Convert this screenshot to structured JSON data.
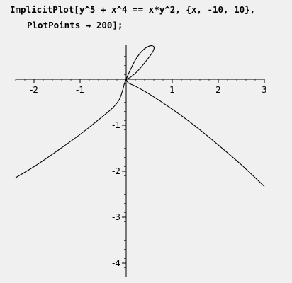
{
  "code": {
    "line1": "ImplicitPlot[y^5 + x^4 == x*y^2, {x, -10, 10},",
    "line2": "PlotPoints → 200];"
  },
  "chart_data": {
    "type": "line",
    "title": "",
    "xlabel": "",
    "ylabel": "",
    "xlim": [
      -2.4,
      3.0
    ],
    "ylim": [
      -4.3,
      0.75
    ],
    "x_ticks": [
      -2,
      -1,
      1,
      2,
      3
    ],
    "y_ticks": [
      -1,
      -2,
      -3,
      -4
    ],
    "grid": false,
    "colors": {
      "curve": "#000000",
      "axes": "#000000"
    },
    "series": [
      {
        "points": [
          [
            -2.4,
            -2.14
          ],
          [
            -2.0,
            -1.9
          ],
          [
            -1.5,
            -1.56
          ],
          [
            -1.0,
            -1.2
          ],
          [
            -0.6,
            -0.88
          ],
          [
            -0.3,
            -0.63
          ],
          [
            -0.15,
            -0.44
          ],
          [
            -0.08,
            -0.25
          ],
          [
            -0.04,
            -0.1
          ],
          [
            0.0,
            0.0
          ]
        ]
      },
      {
        "points": [
          [
            0.0,
            0.0
          ],
          [
            0.05,
            -0.08
          ],
          [
            0.2,
            -0.15
          ],
          [
            0.5,
            -0.32
          ],
          [
            1.0,
            -0.65
          ],
          [
            1.5,
            -1.02
          ],
          [
            2.0,
            -1.43
          ],
          [
            2.5,
            -1.86
          ],
          [
            3.0,
            -2.33
          ]
        ]
      },
      {
        "points": [
          [
            0.0,
            0.0
          ],
          [
            0.08,
            0.18
          ],
          [
            0.2,
            0.42
          ],
          [
            0.35,
            0.62
          ],
          [
            0.5,
            0.72
          ],
          [
            0.6,
            0.71
          ],
          [
            0.58,
            0.6
          ],
          [
            0.45,
            0.42
          ],
          [
            0.25,
            0.18
          ],
          [
            0.1,
            0.05
          ],
          [
            0.0,
            0.0
          ]
        ]
      }
    ]
  }
}
